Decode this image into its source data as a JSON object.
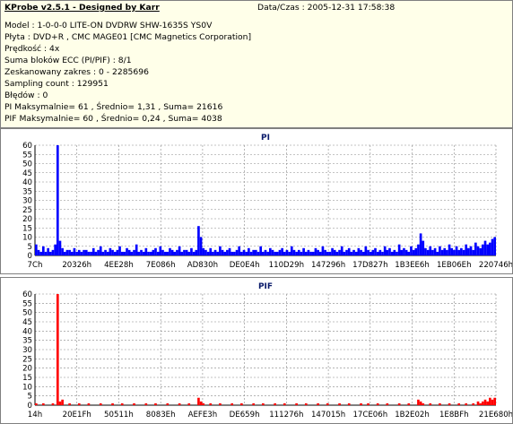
{
  "info": {
    "title": "KProbe v2.5.1 - Designed by Karr",
    "datetime": "Data/Czas : 2005-12-31 17:58:38",
    "lines": [
      "Model : 1-0-0-0 LITE-ON DVDRW SHW-1635S  YS0V",
      "Płyta : DVD+R , CMC MAGE01 [CMC Magnetics Corporation]",
      "Prędkość : 4x",
      "Suma bloków ECC (PI/PIF) : 8/1",
      "Zeskanowany zakres : 0 - 2285696",
      "Sampling count : 129951",
      "Błędów : 0",
      "PI Maksymalnie= 61 , Średnio= 1,31 , Suma= 21616",
      "PIF Maksymalnie= 60 , Średnio= 0,24 , Suma= 4038"
    ]
  },
  "colors": {
    "pi": "#0000ff",
    "pif": "#ff0000",
    "grid": "#888888",
    "info_bg": "#ffffe9"
  },
  "chart_data": [
    {
      "type": "area",
      "title": "PI",
      "ylim": [
        0,
        60
      ],
      "yticks": [
        "0",
        "5",
        "10",
        "15",
        "20",
        "25",
        "30",
        "35",
        "40",
        "45",
        "50",
        "55",
        "60"
      ],
      "xticks": [
        "7Ch",
        "20326h",
        "4EE28h",
        "7E086h",
        "AD830h",
        "DE0E4h",
        "110D29h",
        "147296h",
        "17D827h",
        "1B3EE6h",
        "1EB06Eh",
        "220746h"
      ],
      "grid": true,
      "series": [
        {
          "values": [
            6,
            3,
            2,
            5,
            2,
            4,
            2,
            3,
            6,
            61,
            8,
            4,
            2,
            3,
            3,
            2,
            4,
            2,
            3,
            2,
            3,
            3,
            2,
            2,
            4,
            2,
            3,
            5,
            2,
            3,
            2,
            4,
            3,
            2,
            3,
            5,
            2,
            2,
            4,
            3,
            2,
            3,
            6,
            2,
            3,
            2,
            4,
            2,
            2,
            3,
            4,
            2,
            5,
            3,
            2,
            2,
            4,
            3,
            2,
            3,
            5,
            2,
            3,
            3,
            2,
            4,
            2,
            3,
            16,
            10,
            4,
            3,
            2,
            4,
            2,
            3,
            2,
            5,
            3,
            2,
            3,
            4,
            2,
            2,
            3,
            5,
            2,
            3,
            2,
            4,
            2,
            3,
            3,
            2,
            5,
            2,
            3,
            2,
            4,
            3,
            2,
            2,
            3,
            4,
            2,
            3,
            2,
            5,
            3,
            2,
            3,
            2,
            4,
            2,
            3,
            2,
            2,
            4,
            3,
            2,
            5,
            3,
            2,
            2,
            4,
            3,
            2,
            3,
            5,
            2,
            3,
            4,
            2,
            3,
            2,
            4,
            3,
            2,
            5,
            3,
            2,
            3,
            4,
            2,
            3,
            2,
            5,
            3,
            4,
            2,
            3,
            2,
            6,
            3,
            4,
            3,
            2,
            5,
            3,
            4,
            6,
            12,
            8,
            4,
            3,
            5,
            3,
            4,
            2,
            5,
            3,
            4,
            3,
            6,
            4,
            3,
            5,
            3,
            4,
            3,
            6,
            4,
            5,
            3,
            7,
            5,
            4,
            6,
            8,
            6,
            7,
            9,
            10
          ]
        }
      ]
    },
    {
      "type": "area",
      "title": "PIF",
      "ylim": [
        0,
        60
      ],
      "yticks": [
        "0",
        "5",
        "10",
        "15",
        "20",
        "25",
        "30",
        "35",
        "40",
        "45",
        "50",
        "55",
        "60"
      ],
      "xticks": [
        "14h",
        "20E1Fh",
        "50511h",
        "8083Eh",
        "AEFE3h",
        "DE659h",
        "111276h",
        "147015h",
        "17CE06h",
        "1B2E02h",
        "1E8BFh",
        "21E680h"
      ],
      "grid": true,
      "series": [
        {
          "values": [
            1,
            0,
            0,
            1,
            0,
            0,
            0,
            1,
            0,
            60,
            2,
            3,
            0,
            0,
            1,
            0,
            0,
            0,
            1,
            0,
            0,
            0,
            1,
            0,
            0,
            0,
            0,
            1,
            0,
            0,
            0,
            0,
            1,
            0,
            0,
            0,
            1,
            0,
            0,
            0,
            0,
            1,
            0,
            0,
            0,
            0,
            1,
            0,
            0,
            0,
            1,
            0,
            0,
            0,
            0,
            1,
            0,
            0,
            0,
            0,
            1,
            0,
            0,
            0,
            1,
            0,
            0,
            0,
            4,
            2,
            1,
            0,
            0,
            1,
            0,
            0,
            0,
            1,
            0,
            0,
            0,
            0,
            1,
            0,
            0,
            0,
            1,
            0,
            0,
            0,
            0,
            1,
            0,
            0,
            0,
            1,
            0,
            0,
            0,
            0,
            1,
            0,
            0,
            0,
            1,
            0,
            0,
            0,
            0,
            1,
            0,
            0,
            0,
            1,
            0,
            0,
            0,
            0,
            1,
            0,
            0,
            0,
            1,
            0,
            0,
            0,
            0,
            1,
            0,
            0,
            0,
            1,
            0,
            0,
            0,
            0,
            1,
            0,
            0,
            1,
            0,
            0,
            0,
            1,
            0,
            0,
            0,
            1,
            0,
            0,
            0,
            0,
            1,
            0,
            0,
            0,
            1,
            0,
            0,
            0,
            3,
            2,
            1,
            0,
            0,
            1,
            0,
            0,
            0,
            1,
            0,
            0,
            0,
            1,
            0,
            0,
            0,
            1,
            0,
            0,
            1,
            0,
            0,
            1,
            0,
            2,
            1,
            2,
            3,
            2,
            4,
            3,
            4
          ]
        }
      ]
    }
  ]
}
